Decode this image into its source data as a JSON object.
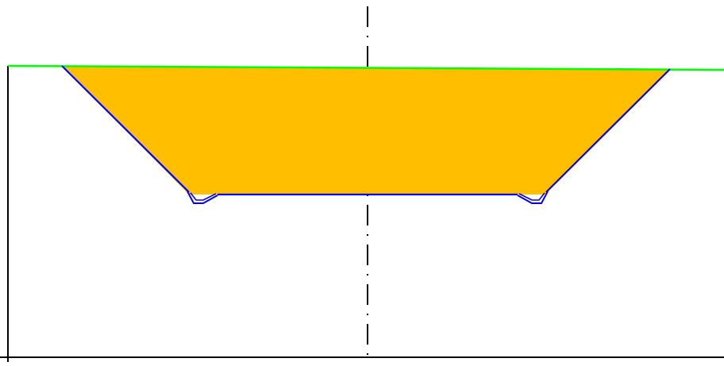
{
  "diagram": {
    "type": "cross-section",
    "colors": {
      "background": "#ffffff",
      "fill": "#ffbf00",
      "section_outline": "#0000ff",
      "ground_line": "#00ff00",
      "frame": "#000000",
      "centerline": "#000000"
    }
  }
}
